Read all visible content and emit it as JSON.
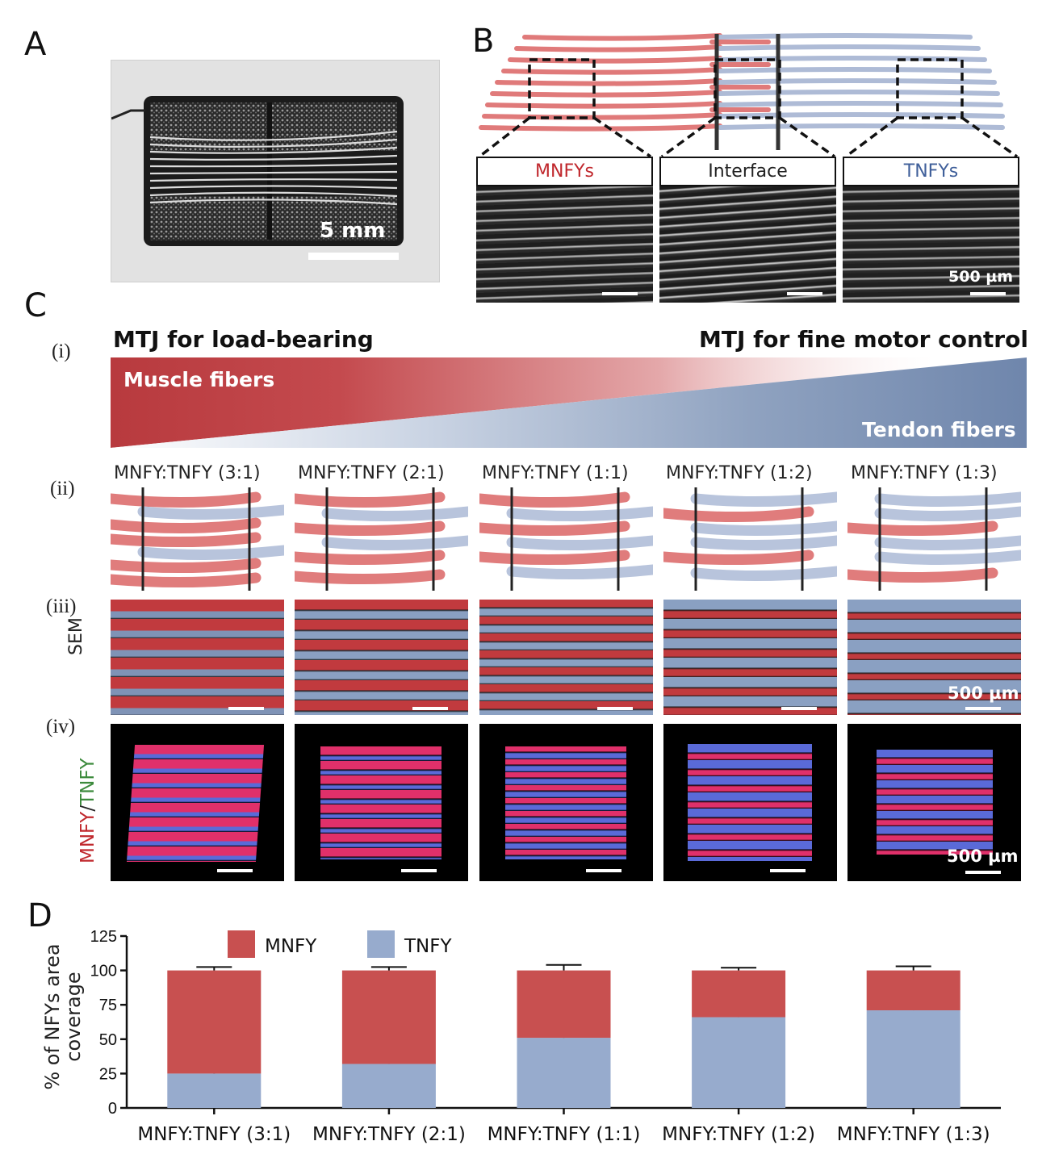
{
  "panels": {
    "a": "A",
    "b": "B",
    "c": "C",
    "d": "D"
  },
  "panel_a": {
    "scalebar": "5 mm"
  },
  "panel_b": {
    "boxes": [
      "MNFYs",
      "Interface",
      "TNFYs"
    ],
    "scalebar": "500 µm",
    "colors": {
      "mnfy": "#c0282d",
      "tnfy": "#3f5f9a",
      "interface": "#222222"
    }
  },
  "panel_c": {
    "rows": [
      "(i)",
      "(ii)",
      "(iii)",
      "(iv)"
    ],
    "heading_left": "MTJ for load-bearing",
    "heading_right": "MTJ for fine motor control",
    "muscle_label": "Muscle fibers",
    "tendon_label": "Tendon fibers",
    "ratios": [
      "MNFY:TNFY (3:1)",
      "MNFY:TNFY (2:1)",
      "MNFY:TNFY (1:1)",
      "MNFY:TNFY (1:2)",
      "MNFY:TNFY (1:3)"
    ],
    "sem_label": "SEM",
    "fluor_label_a": "MNFY",
    "fluor_label_sep": "/",
    "fluor_label_b": "TNFY",
    "scalebar": "500 µm"
  },
  "chart_data": {
    "type": "bar",
    "stacked": true,
    "categories": [
      "MNFY:TNFY (3:1)",
      "MNFY:TNFY (2:1)",
      "MNFY:TNFY (1:1)",
      "MNFY:TNFY (1:2)",
      "MNFY:TNFY (1:3)"
    ],
    "series": [
      {
        "name": "TNFY",
        "color": "#97abcd",
        "values": [
          25,
          32,
          51,
          66,
          71
        ],
        "error": [
          2,
          2.5,
          3.5,
          1.5,
          3
        ]
      },
      {
        "name": "MNFY",
        "color": "#c85050",
        "values": [
          75,
          68,
          49,
          34,
          29
        ],
        "error": [
          2.5,
          2.5,
          4,
          2,
          3
        ]
      }
    ],
    "ylabel": "% of NFYs area coverage",
    "xlabel": "",
    "ylim": [
      0,
      125
    ],
    "yticks": [
      "0",
      "25",
      "50",
      "75",
      "100",
      "125"
    ],
    "legend": "top"
  }
}
